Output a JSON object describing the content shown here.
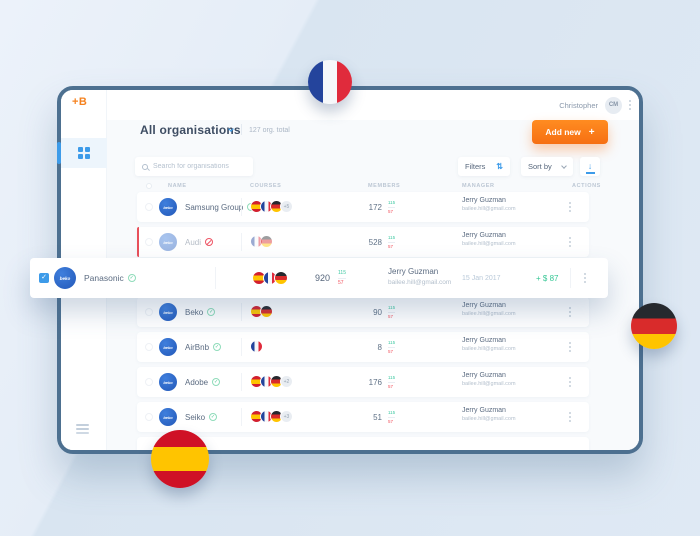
{
  "app": {
    "logo": "+B",
    "user": {
      "name": "Christopher",
      "initials": "CM"
    }
  },
  "page": {
    "title": "All organisations",
    "total": "127 org. total",
    "add_new": "Add new",
    "add_new_plus": "+"
  },
  "toolbar": {
    "search_placeholder": "Search for organisations",
    "filters": "Filters",
    "sort_by": "Sort by"
  },
  "table": {
    "columns": [
      "NAME",
      "COURSES",
      "MEMBERS",
      "MANAGER",
      "ACTIONS"
    ],
    "rows": [
      {
        "avatar": "beko",
        "name": "Samsung Group",
        "status": "active",
        "flags": [
          "spain",
          "france",
          "germany"
        ],
        "extra": "+5",
        "members": "172",
        "delta_up": "115",
        "delta_down": "57",
        "manager": "Jerry Guzman",
        "email": "bailee.hill@gmail.com"
      },
      {
        "avatar": "beko",
        "name": "Audi",
        "status": "blocked",
        "muted": true,
        "flags": [
          "france",
          "germany"
        ],
        "members": "528",
        "delta_up": "115",
        "delta_down": "57",
        "manager": "Jerry Guzman",
        "email": "bailee.hill@gmail.com"
      },
      {
        "avatar": "beko",
        "name": "Beko",
        "status": "active",
        "flags": [
          "spain",
          "germany"
        ],
        "members": "90",
        "delta_up": "115",
        "delta_down": "57",
        "manager": "Jerry Guzman",
        "email": "bailee.hill@gmail.com"
      },
      {
        "avatar": "beko",
        "name": "AirBnb",
        "status": "active",
        "flags": [
          "france"
        ],
        "members": "8",
        "delta_up": "115",
        "delta_down": "57",
        "manager": "Jerry Guzman",
        "email": "bailee.hill@gmail.com"
      },
      {
        "avatar": "beko",
        "name": "Adobe",
        "status": "active",
        "flags": [
          "spain",
          "france",
          "germany"
        ],
        "extra": "+2",
        "members": "176",
        "delta_up": "115",
        "delta_down": "57",
        "manager": "Jerry Guzman",
        "email": "bailee.hill@gmail.com"
      },
      {
        "avatar": "beko",
        "name": "Seiko",
        "status": "active",
        "flags": [
          "spain",
          "france",
          "germany"
        ],
        "extra": "+3",
        "members": "51",
        "delta_up": "115",
        "delta_down": "57",
        "manager": "Jerry Guzman",
        "email": "bailee.hill@gmail.com"
      }
    ]
  },
  "selected_row": {
    "avatar": "beko",
    "name": "Panasonic",
    "status": "active",
    "checked": true,
    "flags": [
      "spain",
      "france",
      "germany"
    ],
    "members": "920",
    "delta_up": "115",
    "delta_down": "57",
    "manager": "Jerry Guzman",
    "email": "bailee.hill@gmail.com",
    "date": "15 Jan 2017",
    "amount": "+ $ 87"
  },
  "colors": {
    "accent_orange": "#f66f12",
    "accent_blue": "#3d9be9",
    "positive": "#36c795",
    "negative": "#f2545f",
    "window_border": "#4d7090"
  },
  "decor": {
    "flags": [
      "france",
      "germany",
      "spain"
    ]
  }
}
